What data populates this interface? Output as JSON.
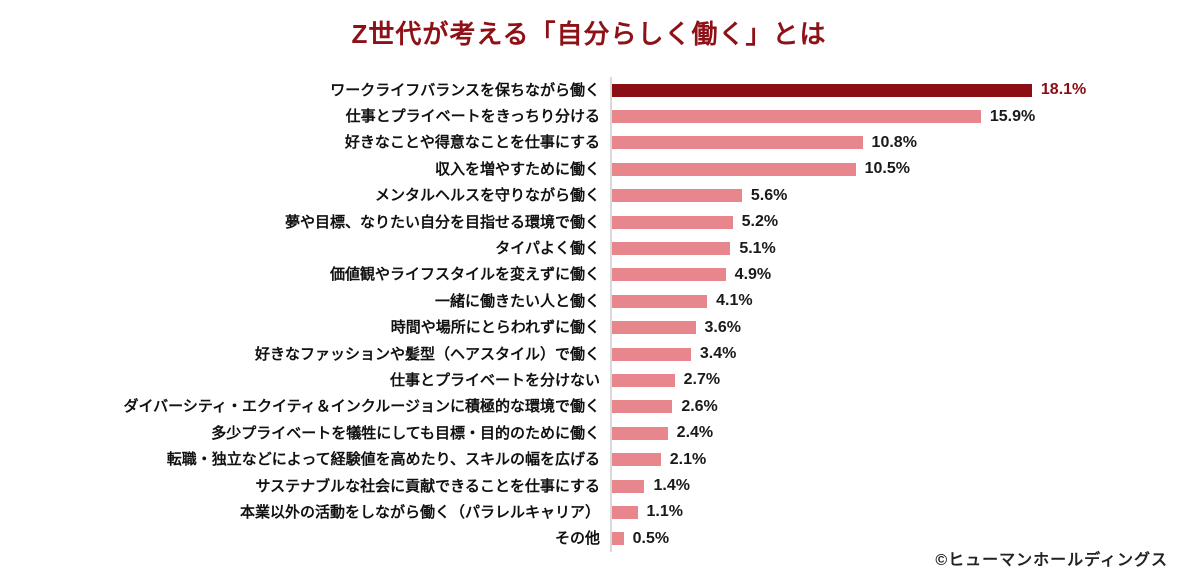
{
  "title": "Z世代が考える「自分らしく働く」とは",
  "attribution": "©ヒューマンホールディングス",
  "colors": {
    "title": "#8e1118",
    "bar_highlight": "#8b0e14",
    "bar_default": "#e8868e",
    "value_highlight": "#8b0e14",
    "value_default": "#1a1a1a",
    "axis_line": "#d9d9d9"
  },
  "chart_data": {
    "type": "bar",
    "orientation": "horizontal",
    "title": "Z世代が考える「自分らしく働く」とは",
    "unit": "%",
    "xlim": [
      0,
      20
    ],
    "grid": false,
    "legend": false,
    "highlighted_index": 0,
    "categories": [
      "ワークライフバランスを保ちながら働く",
      "仕事とプライベートをきっちり分ける",
      "好きなことや得意なことを仕事にする",
      "収入を増やすために働く",
      "メンタルヘルスを守りながら働く",
      "夢や目標、なりたい自分を目指せる環境で働く",
      "タイパよく働く",
      "価値観やライフスタイルを変えずに働く",
      "一緒に働きたい人と働く",
      "時間や場所にとらわれずに働く",
      "好きなファッションや髪型（ヘアスタイル）で働く",
      "仕事とプライベートを分けない",
      "ダイバーシティ・エクイティ＆インクルージョンに積極的な環境で働く",
      "多少プライベートを犠牲にしても目標・目的のために働く",
      "転職・独立などによって経験値を高めたり、スキルの幅を広げる",
      "サステナブルな社会に貢献できることを仕事にする",
      "本業以外の活動をしながら働く（パラレルキャリア）",
      "その他"
    ],
    "values": [
      18.1,
      15.9,
      10.8,
      10.5,
      5.6,
      5.2,
      5.1,
      4.9,
      4.1,
      3.6,
      3.4,
      2.7,
      2.6,
      2.4,
      2.1,
      1.4,
      1.1,
      0.5
    ],
    "value_labels": [
      "18.1%",
      "15.9%",
      "10.8%",
      "10.5%",
      "5.6%",
      "5.2%",
      "5.1%",
      "4.9%",
      "4.1%",
      "3.6%",
      "3.4%",
      "2.7%",
      "2.6%",
      "2.4%",
      "2.1%",
      "1.4%",
      "1.1%",
      "0.5%"
    ]
  }
}
